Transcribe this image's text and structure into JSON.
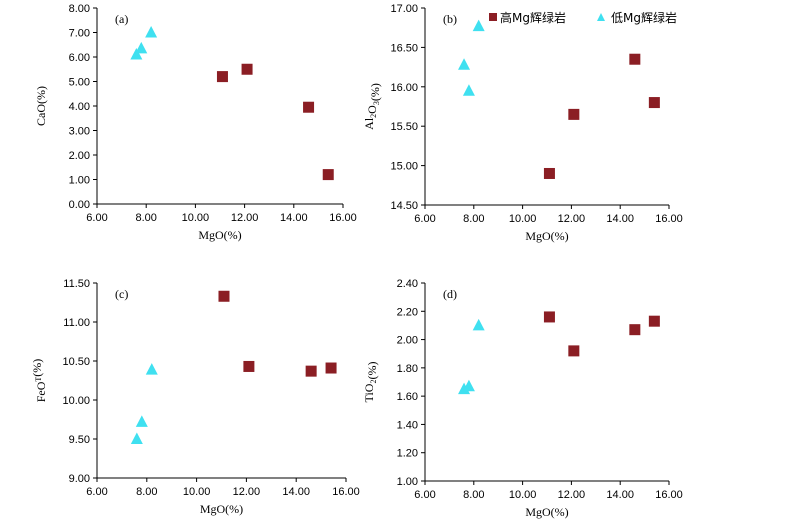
{
  "colors": {
    "high": "#8b1e24",
    "low": "#3fe0f0"
  },
  "legend": {
    "high": "高Mg辉绿岩",
    "low": "低Mg辉绿岩",
    "high_icon": "square-marker",
    "low_icon": "triangle-marker"
  },
  "chart_data": [
    {
      "panel": "(a)",
      "type": "scatter",
      "xlabel": "MgO(%)",
      "ylabel": "CaO(%)",
      "xlim": [
        6,
        16
      ],
      "ylim": [
        0,
        8
      ],
      "xticks": [
        "6.00",
        "8.00",
        "10.00",
        "12.00",
        "14.00",
        "16.00"
      ],
      "yticks": [
        "0.00",
        "1.00",
        "2.00",
        "3.00",
        "4.00",
        "5.00",
        "6.00",
        "7.00",
        "8.00"
      ],
      "series": [
        {
          "name": "高Mg辉绿岩",
          "marker": "square",
          "x": [
            11.1,
            12.1,
            14.6,
            15.4
          ],
          "y": [
            5.2,
            5.5,
            3.95,
            1.2
          ]
        },
        {
          "name": "低Mg辉绿岩",
          "marker": "triangle",
          "x": [
            7.6,
            7.8,
            8.2
          ],
          "y": [
            6.1,
            6.35,
            7.0
          ]
        }
      ]
    },
    {
      "panel": "(b)",
      "type": "scatter",
      "xlabel": "MgO(%)",
      "ylabel": "Al2O3(%)",
      "xlim": [
        6,
        16
      ],
      "ylim": [
        14.5,
        17
      ],
      "xticks": [
        "6.00",
        "8.00",
        "10.00",
        "12.00",
        "14.00",
        "16.00"
      ],
      "yticks": [
        "14.50",
        "15.00",
        "15.50",
        "16.00",
        "16.50",
        "17.00"
      ],
      "series": [
        {
          "name": "高Mg辉绿岩",
          "marker": "square",
          "x": [
            11.1,
            12.1,
            14.6,
            15.4
          ],
          "y": [
            14.9,
            15.65,
            16.35,
            15.8
          ]
        },
        {
          "name": "低Mg辉绿岩",
          "marker": "triangle",
          "x": [
            7.6,
            7.8,
            8.2
          ],
          "y": [
            16.28,
            15.95,
            16.77
          ]
        }
      ]
    },
    {
      "panel": "(c)",
      "type": "scatter",
      "xlabel": "MgO(%)",
      "ylabel": "FeOT(%)",
      "xlim": [
        6,
        16
      ],
      "ylim": [
        9,
        11.5
      ],
      "xticks": [
        "6.00",
        "8.00",
        "10.00",
        "12.00",
        "14.00",
        "16.00"
      ],
      "yticks": [
        "9.00",
        "9.50",
        "10.00",
        "10.50",
        "11.00",
        "11.50"
      ],
      "series": [
        {
          "name": "高Mg辉绿岩",
          "marker": "square",
          "x": [
            11.1,
            12.1,
            14.6,
            15.4
          ],
          "y": [
            11.33,
            10.43,
            10.37,
            10.41
          ]
        },
        {
          "name": "低Mg辉绿岩",
          "marker": "triangle",
          "x": [
            7.6,
            7.8,
            8.2
          ],
          "y": [
            9.5,
            9.72,
            10.39
          ]
        }
      ]
    },
    {
      "panel": "(d)",
      "type": "scatter",
      "xlabel": "MgO(%)",
      "ylabel": "TiO2(%)",
      "xlim": [
        6,
        16
      ],
      "ylim": [
        1,
        2.4
      ],
      "xticks": [
        "6.00",
        "8.00",
        "10.00",
        "12.00",
        "14.00",
        "16.00"
      ],
      "yticks": [
        "1.00",
        "1.20",
        "1.40",
        "1.60",
        "1.80",
        "2.00",
        "2.20",
        "2.40"
      ],
      "series": [
        {
          "name": "高Mg辉绿岩",
          "marker": "square",
          "x": [
            11.1,
            12.1,
            14.6,
            15.4
          ],
          "y": [
            2.16,
            1.92,
            2.07,
            2.13
          ]
        },
        {
          "name": "低Mg辉绿岩",
          "marker": "triangle",
          "x": [
            7.6,
            7.8,
            8.2
          ],
          "y": [
            1.65,
            1.67,
            2.1
          ]
        }
      ]
    }
  ]
}
